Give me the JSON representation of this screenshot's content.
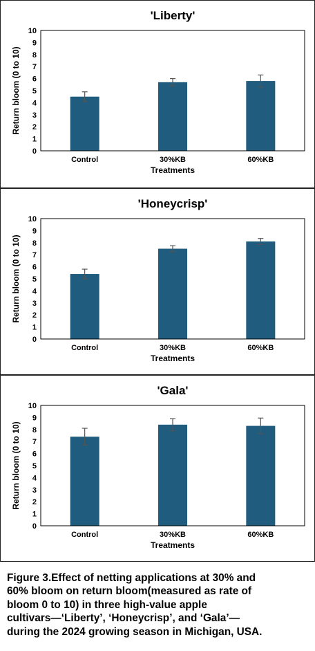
{
  "chart_data": [
    {
      "type": "bar",
      "title": "'Liberty'",
      "xlabel": "Treatments",
      "ylabel": "Return bloom (0 to 10)",
      "categories": [
        "Control",
        "30%KB",
        "60%KB"
      ],
      "values": [
        4.5,
        5.7,
        5.8
      ],
      "errors": [
        0.4,
        0.3,
        0.5
      ],
      "ylim": [
        0,
        10
      ],
      "yticks": [
        "0",
        "1",
        "2",
        "3",
        "4",
        "5",
        "6",
        "7",
        "8",
        "9",
        "10"
      ],
      "bar_color": "#1f5c7e",
      "grid": false
    },
    {
      "type": "bar",
      "title": "'Honeycrisp'",
      "xlabel": "Treatments",
      "ylabel": "Return bloom (0 to 10)",
      "categories": [
        "Control",
        "30%KB",
        "60%KB"
      ],
      "values": [
        5.4,
        7.5,
        8.1
      ],
      "errors": [
        0.4,
        0.25,
        0.25
      ],
      "ylim": [
        0,
        10
      ],
      "yticks": [
        "0",
        "1",
        "2",
        "3",
        "4",
        "5",
        "6",
        "7",
        "8",
        "9",
        "10"
      ],
      "bar_color": "#1f5c7e",
      "grid": false
    },
    {
      "type": "bar",
      "title": "'Gala'",
      "xlabel": "Treatments",
      "ylabel": "Return bloom (0 to 10)",
      "categories": [
        "Control",
        "30%KB",
        "60%KB"
      ],
      "values": [
        7.4,
        8.4,
        8.3
      ],
      "errors": [
        0.7,
        0.5,
        0.65
      ],
      "ylim": [
        0,
        10
      ],
      "yticks": [
        "0",
        "1",
        "2",
        "3",
        "4",
        "5",
        "6",
        "7",
        "8",
        "9",
        "10"
      ],
      "bar_color": "#1f5c7e",
      "grid": false
    }
  ],
  "caption": {
    "lines": [
      "Figure 3.Effect of netting applications at 30% and",
      "60% bloom on return bloom(measured as rate of",
      "bloom 0 to 10) in three high-value apple",
      "cultivars—‘Liberty’, ‘Honeycrisp’, and ‘Gala’—",
      "during the 2024 growing season in Michigan, USA."
    ]
  }
}
